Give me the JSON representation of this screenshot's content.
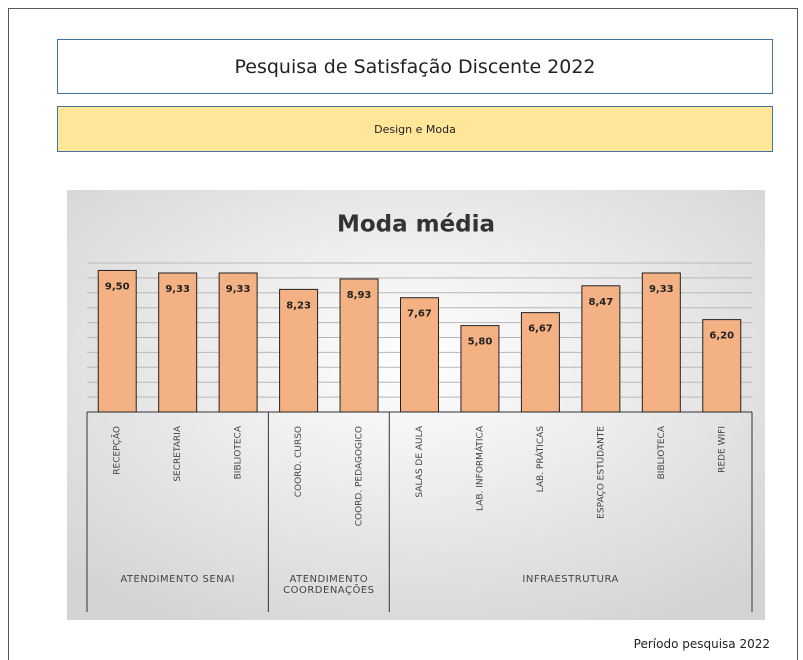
{
  "header": {
    "title": "Pesquisa de Satisfação Discente 2022",
    "subtitle": "Design e Moda"
  },
  "footer": "Período pesquisa 2022",
  "chart_data": {
    "type": "bar",
    "title": "Moda média",
    "color": "#f4b183",
    "groups": [
      {
        "label": "ATENDIMENTO SENAI",
        "categories": [
          "RECEPÇÃO",
          "SECRETARIA",
          "BIBLIOTECA"
        ],
        "values": [
          9.5,
          9.33,
          9.33
        ],
        "value_labels": [
          "9,50",
          "9,33",
          "9,33"
        ]
      },
      {
        "label": "ATENDIMENTO COORDENAÇÕES",
        "categories": [
          "COORD. CURSO",
          "COORD. PEDAGOGICO"
        ],
        "values": [
          8.23,
          8.93
        ],
        "value_labels": [
          "8,23",
          "8,93"
        ]
      },
      {
        "label": "INFRAESTRUTURA",
        "categories": [
          "SALAS DE AULA",
          "LAB. INFORMÁTICA",
          "LAB. PRÁTICAS",
          "ESPAÇO ESTUDANTE",
          "BIBLIOTECA",
          "REDE WIFI"
        ],
        "values": [
          7.67,
          5.8,
          6.67,
          8.47,
          9.33,
          6.2
        ],
        "value_labels": [
          "7,67",
          "5,80",
          "6,67",
          "8,47",
          "9,33",
          "6,20"
        ]
      }
    ],
    "ylim": [
      0,
      10
    ],
    "yticks": [
      0,
      1,
      2,
      3,
      4,
      5,
      6,
      7,
      8,
      9,
      10
    ],
    "grid": true
  }
}
